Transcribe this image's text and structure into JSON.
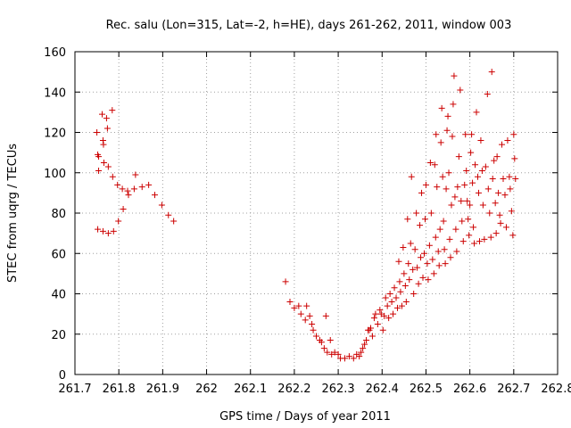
{
  "chart_data": {
    "type": "scatter",
    "title": "Rec. salu (Lon=315, Lat=-2, h=HE), days 261-262, 2011, window 003",
    "xlabel": "GPS time / Days of year 2011",
    "ylabel": "STEC from uqrg / TECUs",
    "xlim": [
      261.7,
      262.8
    ],
    "ylim": [
      0,
      160
    ],
    "xticks": [
      261.7,
      261.8,
      261.9,
      262,
      262.1,
      262.2,
      262.3,
      262.4,
      262.5,
      262.6,
      262.7,
      262.8
    ],
    "xtick_labels": [
      "261.7",
      "261.8",
      "261.9",
      "262",
      "262.1",
      "262.2",
      "262.3",
      "262.4",
      "262.5",
      "262.6",
      "262.7",
      "262.8"
    ],
    "yticks": [
      0,
      20,
      40,
      60,
      80,
      100,
      120,
      140,
      160
    ],
    "ytick_labels": [
      "0",
      "20",
      "40",
      "60",
      "80",
      "100",
      "120",
      "140",
      "160"
    ],
    "grid": true,
    "marker": "+",
    "color": "#cc0000",
    "series": [
      {
        "points": [
          [
            261.75,
            120
          ],
          [
            261.752,
            109
          ],
          [
            261.754,
            108
          ],
          [
            261.754,
            101
          ],
          [
            261.752,
            72
          ],
          [
            261.762,
            129
          ],
          [
            261.764,
            116
          ],
          [
            261.765,
            114
          ],
          [
            261.766,
            105
          ],
          [
            261.764,
            71
          ],
          [
            261.772,
            127
          ],
          [
            261.774,
            122
          ],
          [
            261.776,
            103
          ],
          [
            261.776,
            70
          ],
          [
            261.785,
            131
          ],
          [
            261.786,
            98
          ],
          [
            261.788,
            71
          ],
          [
            261.797,
            94
          ],
          [
            261.799,
            76
          ],
          [
            261.808,
            92
          ],
          [
            261.81,
            82
          ],
          [
            261.82,
            91
          ],
          [
            261.822,
            89
          ],
          [
            261.835,
            92
          ],
          [
            261.838,
            99
          ],
          [
            261.853,
            93
          ],
          [
            261.868,
            94
          ],
          [
            261.882,
            89
          ],
          [
            261.898,
            84
          ],
          [
            261.913,
            79
          ],
          [
            261.925,
            76
          ],
          [
            262.18,
            46
          ],
          [
            262.19,
            36
          ],
          [
            262.2,
            33
          ],
          [
            262.21,
            34
          ],
          [
            262.215,
            30
          ],
          [
            262.225,
            27
          ],
          [
            262.228,
            34
          ],
          [
            262.235,
            29
          ],
          [
            262.24,
            25
          ],
          [
            262.243,
            22
          ],
          [
            262.25,
            19
          ],
          [
            262.258,
            17
          ],
          [
            262.262,
            16
          ],
          [
            262.268,
            13
          ],
          [
            262.272,
            29
          ],
          [
            262.275,
            11
          ],
          [
            262.282,
            17
          ],
          [
            262.285,
            10
          ],
          [
            262.292,
            11
          ],
          [
            262.3,
            10
          ],
          [
            262.305,
            8
          ],
          [
            262.315,
            8
          ],
          [
            262.325,
            9
          ],
          [
            262.335,
            8
          ],
          [
            262.342,
            10
          ],
          [
            262.348,
            9
          ],
          [
            262.352,
            11
          ],
          [
            262.356,
            13
          ],
          [
            262.36,
            15
          ],
          [
            262.364,
            17
          ],
          [
            262.368,
            22
          ],
          [
            262.371,
            22
          ],
          [
            262.374,
            23
          ],
          [
            262.378,
            19
          ],
          [
            262.382,
            28
          ],
          [
            262.385,
            30
          ],
          [
            262.39,
            25
          ],
          [
            262.395,
            32
          ],
          [
            262.398,
            30
          ],
          [
            262.402,
            22
          ],
          [
            262.405,
            29
          ],
          [
            262.408,
            38
          ],
          [
            262.412,
            34
          ],
          [
            262.415,
            28
          ],
          [
            262.418,
            40
          ],
          [
            262.422,
            36
          ],
          [
            262.425,
            30
          ],
          [
            262.428,
            43
          ],
          [
            262.432,
            38
          ],
          [
            262.435,
            33
          ],
          [
            262.438,
            56
          ],
          [
            262.44,
            46
          ],
          [
            262.442,
            41
          ],
          [
            262.445,
            34
          ],
          [
            262.448,
            63
          ],
          [
            262.45,
            50
          ],
          [
            262.453,
            44
          ],
          [
            262.455,
            36
          ],
          [
            262.458,
            77
          ],
          [
            262.46,
            55
          ],
          [
            262.462,
            47
          ],
          [
            262.465,
            65
          ],
          [
            262.467,
            98
          ],
          [
            262.47,
            52
          ],
          [
            262.472,
            40
          ],
          [
            262.475,
            62
          ],
          [
            262.478,
            80
          ],
          [
            262.48,
            53
          ],
          [
            262.483,
            45
          ],
          [
            262.486,
            74
          ],
          [
            262.488,
            58
          ],
          [
            262.49,
            90
          ],
          [
            262.493,
            48
          ],
          [
            262.496,
            60
          ],
          [
            262.498,
            77
          ],
          [
            262.5,
            94
          ],
          [
            262.503,
            55
          ],
          [
            262.505,
            47
          ],
          [
            262.508,
            64
          ],
          [
            262.51,
            105
          ],
          [
            262.512,
            80
          ],
          [
            262.515,
            57
          ],
          [
            262.518,
            50
          ],
          [
            262.52,
            104
          ],
          [
            262.522,
            68
          ],
          [
            262.523,
            119
          ],
          [
            262.525,
            93
          ],
          [
            262.528,
            61
          ],
          [
            262.53,
            54
          ],
          [
            262.532,
            72
          ],
          [
            262.534,
            115
          ],
          [
            262.536,
            132
          ],
          [
            262.538,
            98
          ],
          [
            262.54,
            76
          ],
          [
            262.542,
            62
          ],
          [
            262.544,
            55
          ],
          [
            262.546,
            92
          ],
          [
            262.548,
            121
          ],
          [
            262.55,
            128
          ],
          [
            262.552,
            100
          ],
          [
            262.554,
            67
          ],
          [
            262.556,
            58
          ],
          [
            262.558,
            84
          ],
          [
            262.56,
            118
          ],
          [
            262.562,
            134
          ],
          [
            262.564,
            148
          ],
          [
            262.566,
            88
          ],
          [
            262.568,
            72
          ],
          [
            262.57,
            61
          ],
          [
            262.572,
            93
          ],
          [
            262.575,
            108
          ],
          [
            262.578,
            141
          ],
          [
            262.58,
            86
          ],
          [
            262.582,
            76
          ],
          [
            262.585,
            66
          ],
          [
            262.588,
            94
          ],
          [
            262.59,
            119
          ],
          [
            262.592,
            101
          ],
          [
            262.594,
            86
          ],
          [
            262.596,
            77
          ],
          [
            262.598,
            69
          ],
          [
            262.6,
            84
          ],
          [
            262.602,
            110
          ],
          [
            262.604,
            119
          ],
          [
            262.606,
            95
          ],
          [
            262.608,
            73
          ],
          [
            262.61,
            65
          ],
          [
            262.612,
            104
          ],
          [
            262.615,
            130
          ],
          [
            262.618,
            98
          ],
          [
            262.62,
            90
          ],
          [
            262.622,
            66
          ],
          [
            262.625,
            116
          ],
          [
            262.628,
            101
          ],
          [
            262.63,
            84
          ],
          [
            262.633,
            67
          ],
          [
            262.636,
            103
          ],
          [
            262.64,
            139
          ],
          [
            262.642,
            92
          ],
          [
            262.645,
            80
          ],
          [
            262.648,
            68
          ],
          [
            262.65,
            150
          ],
          [
            262.652,
            97
          ],
          [
            262.655,
            106
          ],
          [
            262.658,
            85
          ],
          [
            262.66,
            70
          ],
          [
            262.662,
            108
          ],
          [
            262.665,
            90
          ],
          [
            262.668,
            79
          ],
          [
            262.67,
            75
          ],
          [
            262.673,
            114
          ],
          [
            262.676,
            97
          ],
          [
            262.68,
            89
          ],
          [
            262.683,
            73
          ],
          [
            262.686,
            116
          ],
          [
            262.69,
            98
          ],
          [
            262.692,
            92
          ],
          [
            262.695,
            81
          ],
          [
            262.698,
            69
          ],
          [
            262.7,
            119
          ],
          [
            262.702,
            107
          ],
          [
            262.704,
            97
          ]
        ]
      }
    ]
  }
}
